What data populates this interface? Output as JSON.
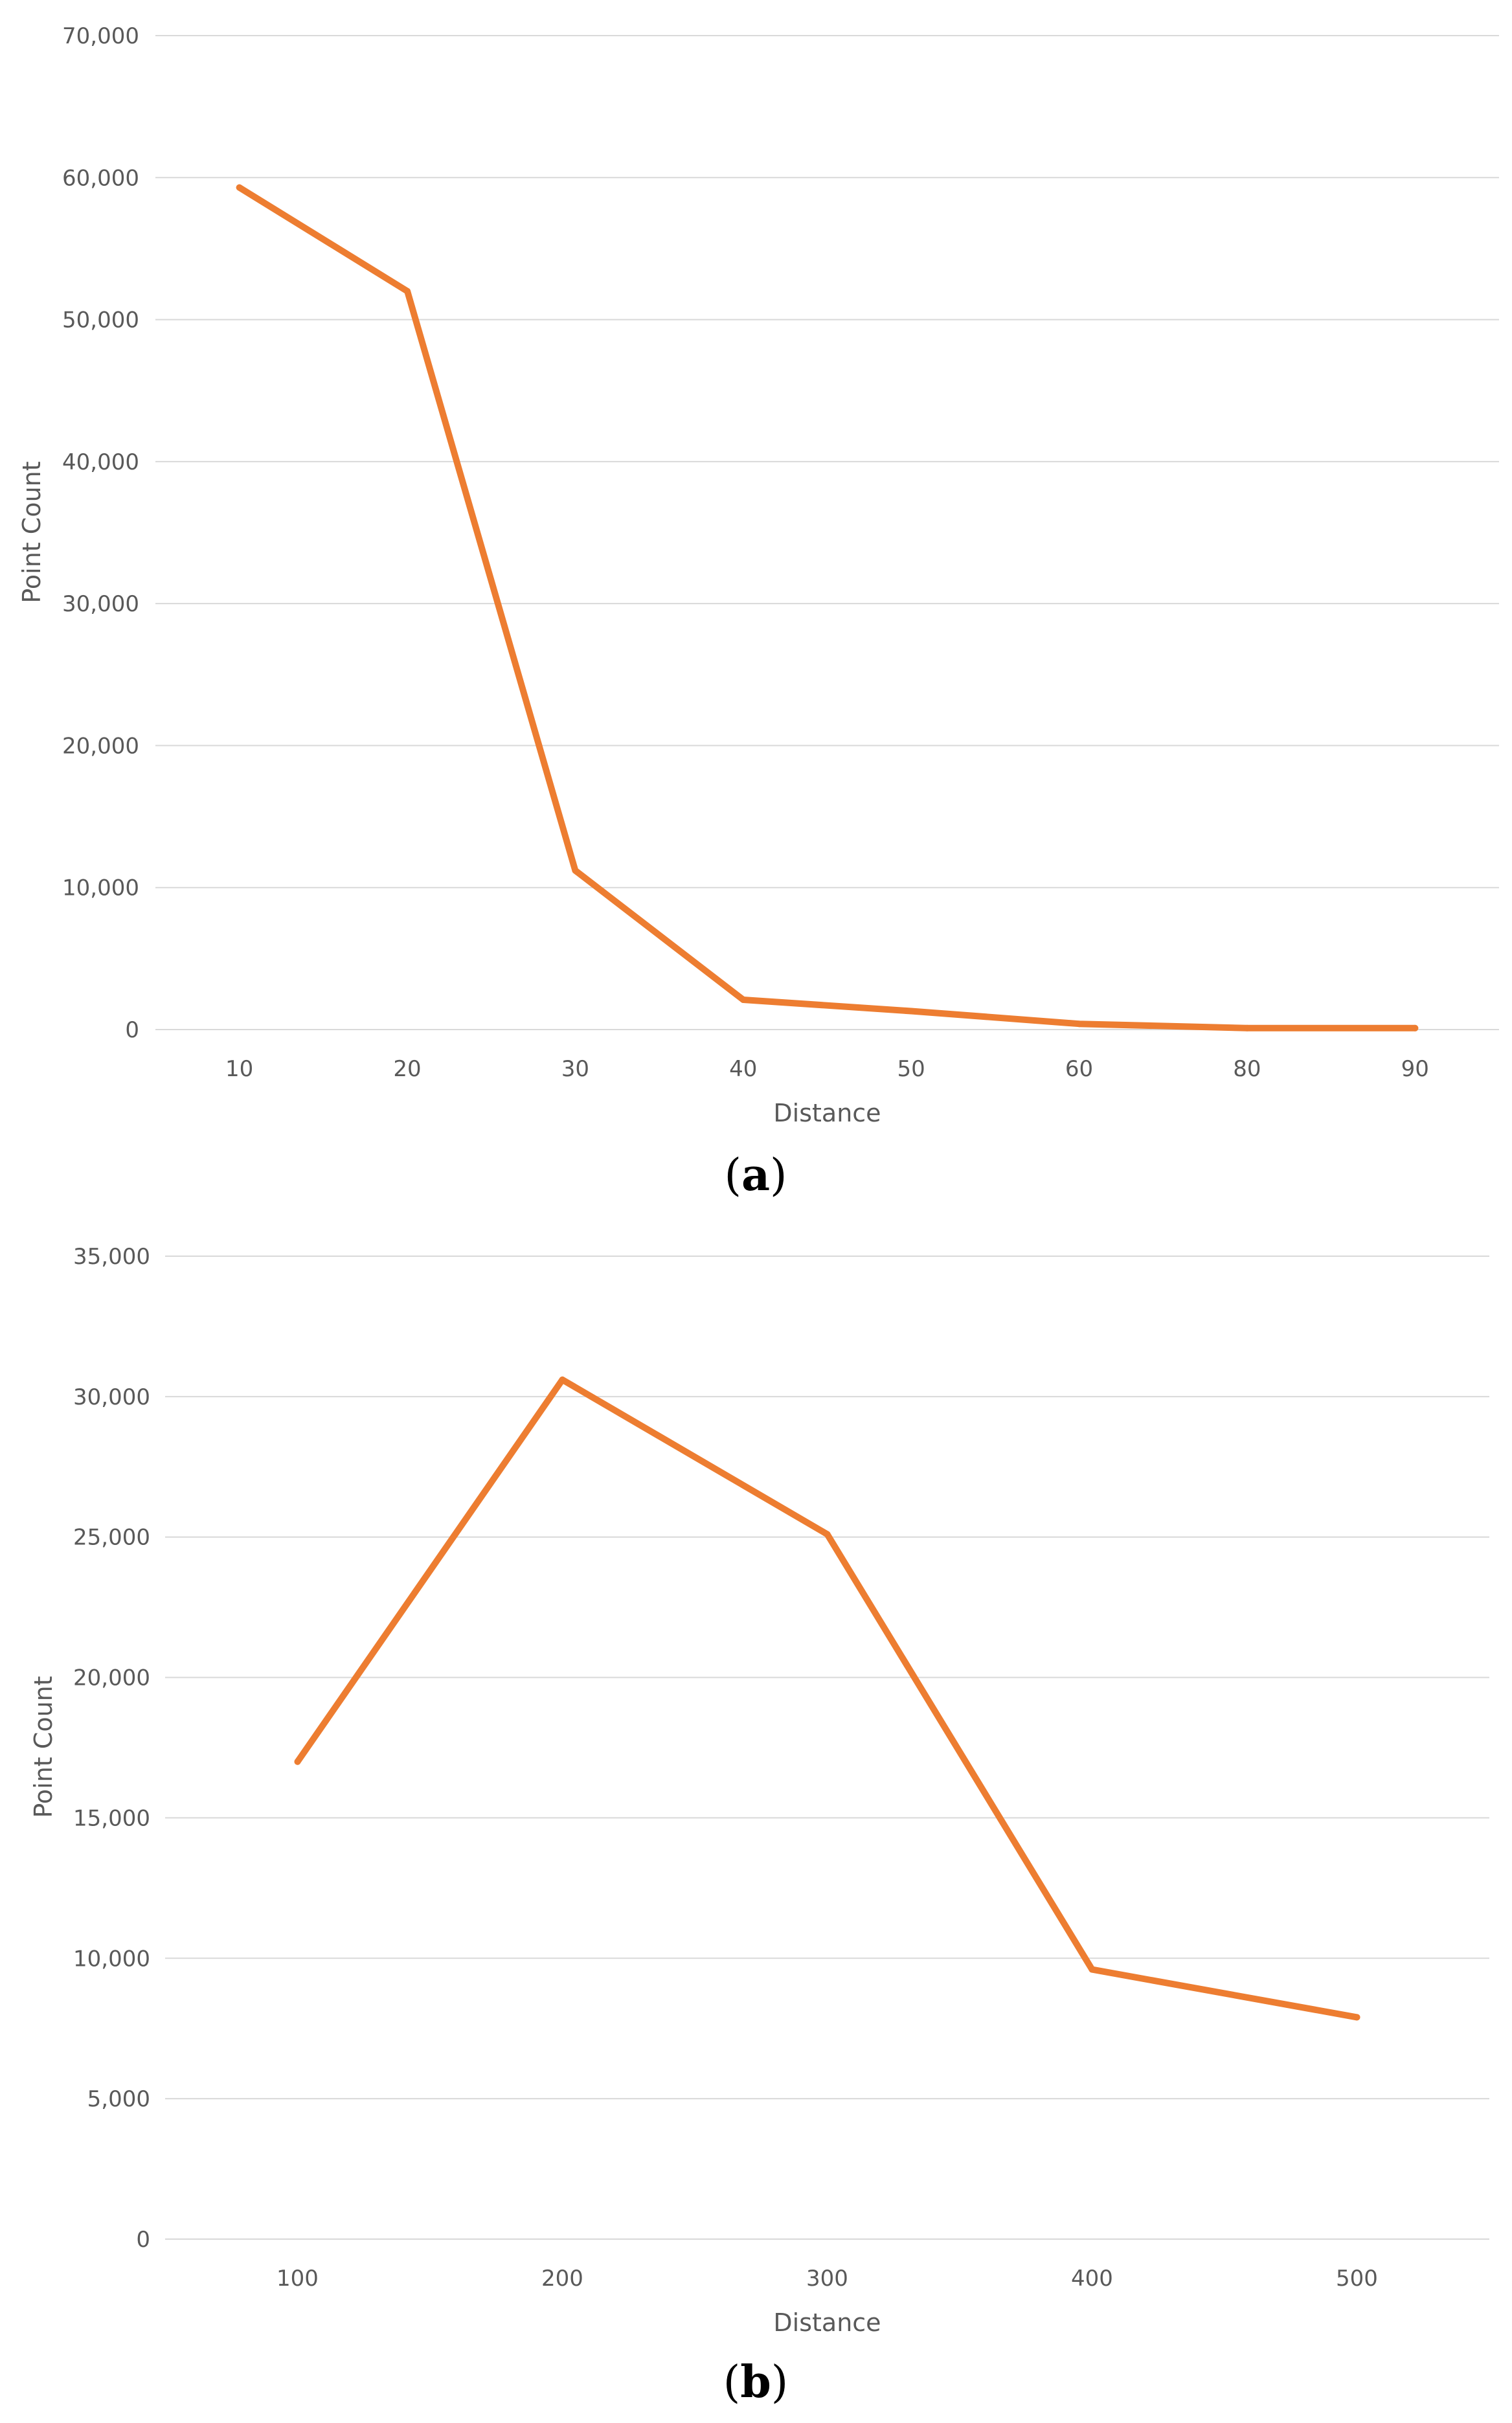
{
  "panels": [
    {
      "label_open": "(",
      "label_letter": "a",
      "label_close": ")"
    },
    {
      "label_open": "(",
      "label_letter": "b",
      "label_close": ")"
    }
  ],
  "chart_data": [
    {
      "type": "line",
      "xlabel": "Distance",
      "ylabel": "Point Count",
      "categories": [
        "10",
        "20",
        "30",
        "40",
        "50",
        "60",
        "80",
        "90"
      ],
      "series": [
        {
          "values": [
            59300,
            52000,
            11200,
            2100,
            1300,
            400,
            100,
            100
          ],
          "color": "#ED7D31"
        }
      ],
      "ylim": [
        0,
        70000
      ],
      "yticks": [
        0,
        10000,
        20000,
        30000,
        40000,
        50000,
        60000,
        70000
      ],
      "ytick_labels": [
        "0",
        "10,000",
        "20,000",
        "30,000",
        "40,000",
        "50,000",
        "60,000",
        "70,000"
      ],
      "grid": true,
      "gridline_color": "#D9D9D9"
    },
    {
      "type": "line",
      "xlabel": "Distance",
      "ylabel": "Point Count",
      "categories": [
        "100",
        "200",
        "300",
        "400",
        "500"
      ],
      "series": [
        {
          "values": [
            17000,
            30600,
            25100,
            9600,
            7900
          ],
          "color": "#ED7D31"
        }
      ],
      "ylim": [
        0,
        35000
      ],
      "yticks": [
        0,
        5000,
        10000,
        15000,
        20000,
        25000,
        30000,
        35000
      ],
      "ytick_labels": [
        "0",
        "5,000",
        "10,000",
        "15,000",
        "20,000",
        "25,000",
        "30,000",
        "35,000"
      ],
      "grid": true,
      "gridline_color": "#D9D9D9"
    }
  ]
}
